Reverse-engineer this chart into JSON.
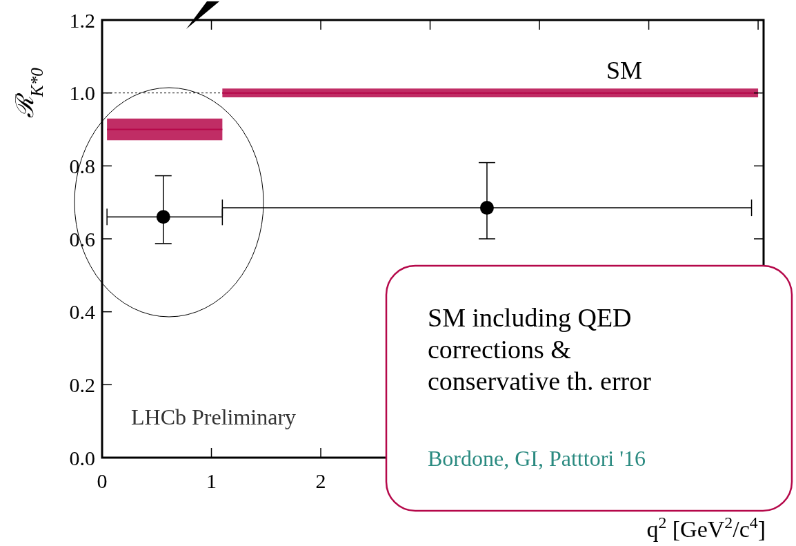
{
  "chart_data": {
    "type": "scatter",
    "ylabel": "ℛ$_{K*0}$",
    "xlabel": "q$^{2}$ [GeV$^{2}$/c$^{4}$]",
    "xlim": [
      0,
      6.05
    ],
    "ylim": [
      0,
      1.2
    ],
    "xticks": [
      0,
      1,
      2,
      {
        "value": 3,
        "label": null
      },
      {
        "value": 4,
        "label": null
      },
      {
        "value": 5,
        "label": null
      },
      {
        "value": 6,
        "label": null
      }
    ],
    "yticks": [
      {
        "value": 0,
        "label": "0.0"
      },
      {
        "value": 0.2,
        "label": "0.2"
      },
      {
        "value": 0.4,
        "label": "0.4"
      },
      {
        "value": 0.6,
        "label": "0.6"
      },
      {
        "value": 0.8,
        "label": "0.8"
      },
      {
        "value": 1,
        "label": "1.0"
      },
      {
        "value": 1.2,
        "label": "1.2"
      }
    ],
    "ref_lines": [
      {
        "axis": "y",
        "value": 1,
        "line_style": "dotted",
        "color": "#000000"
      }
    ],
    "series": [
      {
        "type": "line",
        "color": "#b5084a",
        "x": [
          0.045,
          1.1
        ],
        "values": [
          0.9,
          0.9
        ],
        "lower": [
          0.87,
          0.87
        ],
        "upper": [
          0.93,
          0.93
        ]
      },
      {
        "type": "line",
        "name": "SM",
        "color": "#b5084a",
        "x": [
          1.1,
          6.0
        ],
        "values": [
          1.0,
          1.0
        ],
        "lower": [
          0.988,
          0.988
        ],
        "upper": [
          1.012,
          1.012
        ]
      },
      {
        "color": "#000000",
        "marker": "circle",
        "x": [
          0.56,
          3.52
        ],
        "values": [
          0.66,
          0.685
        ],
        "errors": [
          [
            0.587,
            0.773
          ],
          [
            0.6,
            0.809
          ]
        ],
        "xerrors": [
          [
            0.045,
            1.1
          ],
          [
            1.1,
            5.94
          ]
        ]
      }
    ],
    "annotations": [
      "LHCb Preliminary",
      "SM including QED corrections & conservative th. error",
      "Bordone, GI, Patttori '16"
    ]
  }
}
